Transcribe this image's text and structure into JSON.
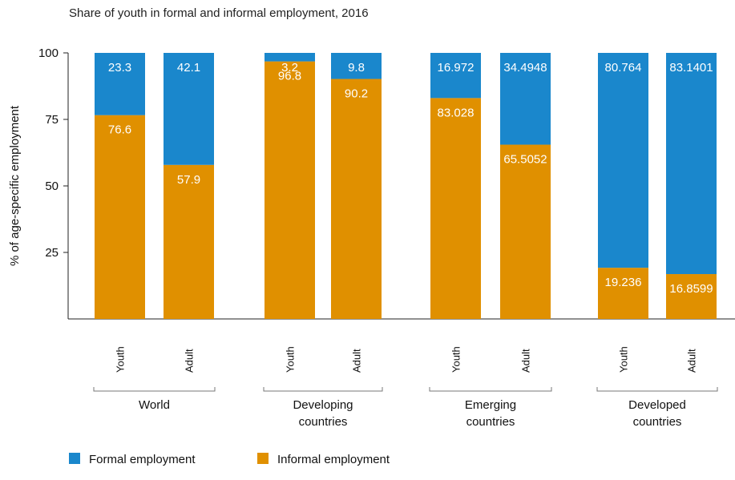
{
  "chart_data": {
    "type": "bar",
    "stacked": true,
    "title": "Share of youth in formal and informal employment, 2016",
    "ylabel": "% of age-specific employment",
    "ylim": [
      0,
      100
    ],
    "yticks": [
      25,
      50,
      75,
      100
    ],
    "grid": false,
    "legend_position": "bottom-left",
    "groups": [
      "World",
      "Developing countries",
      "Emerging countries",
      "Developed countries"
    ],
    "categories": [
      "Youth",
      "Adult",
      "Youth",
      "Adult",
      "Youth",
      "Adult",
      "Youth",
      "Adult"
    ],
    "series": [
      {
        "name": "Formal employment",
        "color": "#1a87cc",
        "values": [
          23.3,
          42.1,
          3.2,
          9.8,
          16.972,
          34.4948,
          80.764,
          83.1401
        ],
        "labels": [
          "23.3",
          "42.1",
          "3.2",
          "9.8",
          "16.972",
          "34.4948",
          "80.764",
          "83.1401"
        ]
      },
      {
        "name": "Informal employment",
        "color": "#e09000",
        "values": [
          76.6,
          57.9,
          96.8,
          90.2,
          83.028,
          65.5052,
          19.236,
          16.8599
        ],
        "labels": [
          "76.6",
          "57.9",
          "96.8",
          "90.2",
          "83.028",
          "65.5052",
          "19.236",
          "16.8599"
        ]
      }
    ]
  }
}
